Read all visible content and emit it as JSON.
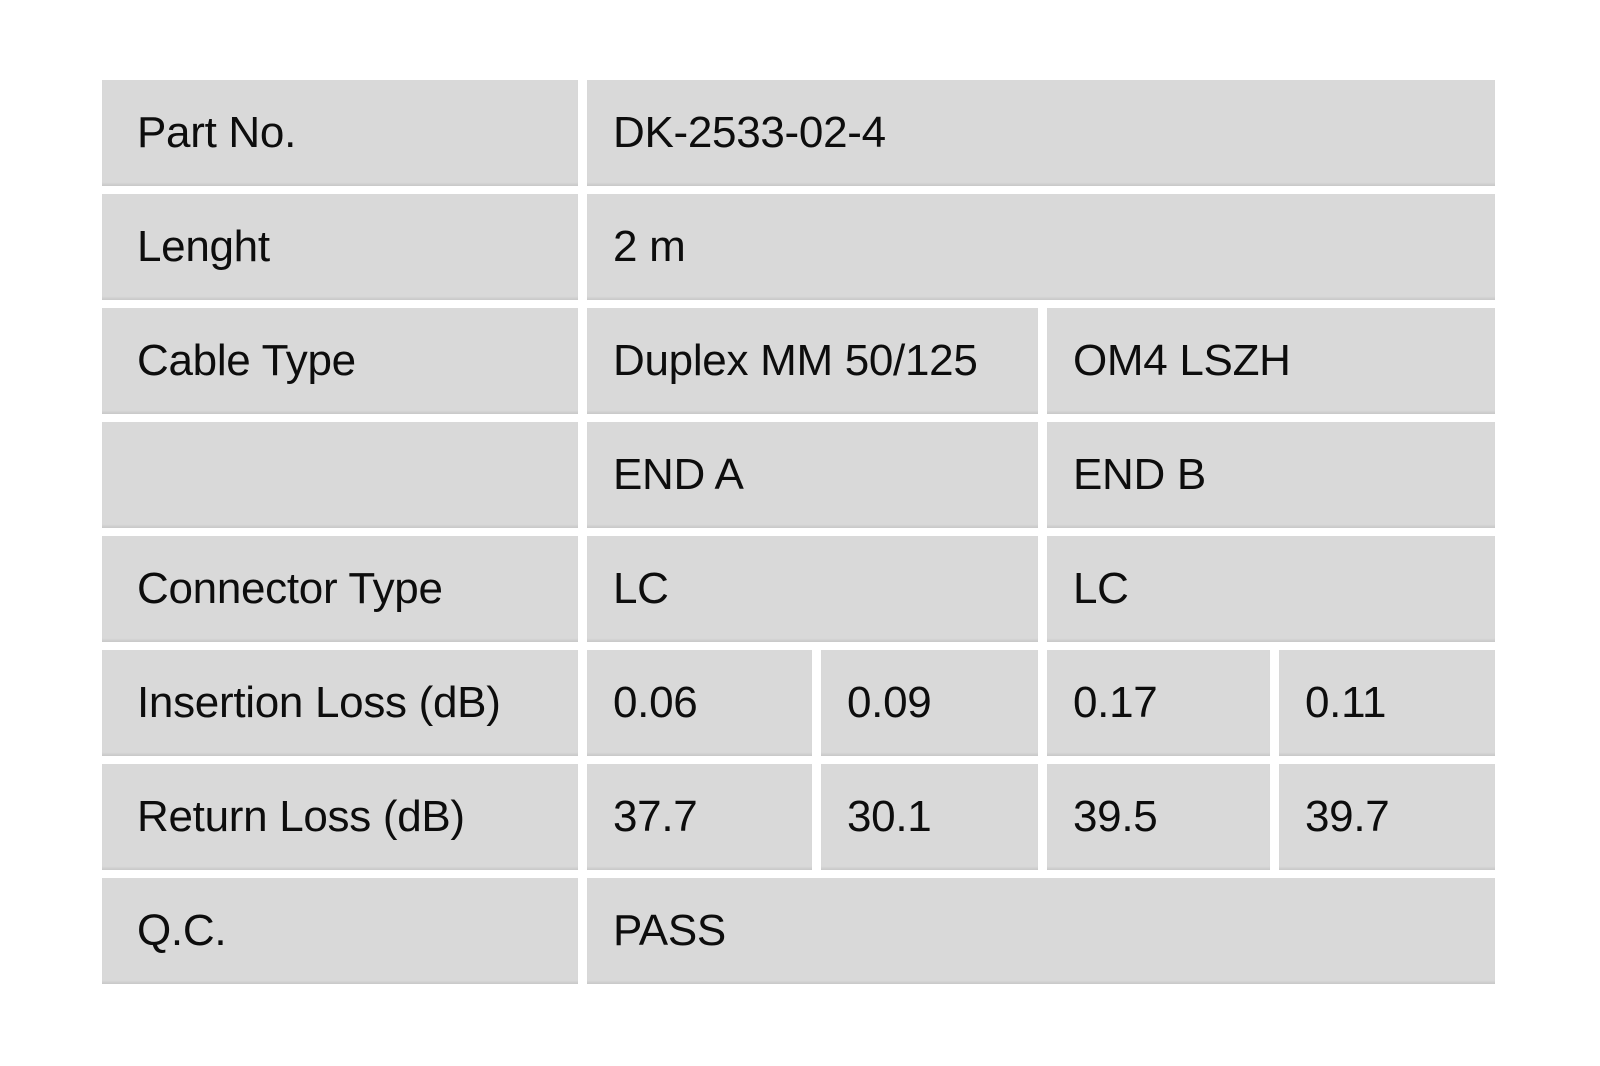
{
  "colors": {
    "page_bg": "#ffffff",
    "cell_bg": "#d9d9d9",
    "text_color": "#0d0d0d"
  },
  "table": {
    "rows": [
      {
        "label": "Part No.",
        "cells": [
          {
            "text": "DK-2533-02-4",
            "span": 4
          }
        ]
      },
      {
        "label": "Lenght",
        "cells": [
          {
            "text": "2 m",
            "span": 4
          }
        ]
      },
      {
        "label": "Cable Type",
        "cells": [
          {
            "text": "Duplex MM 50/125",
            "span": 2
          },
          {
            "text": "OM4 LSZH",
            "span": 2
          }
        ]
      },
      {
        "label": "",
        "cells": [
          {
            "text": "END A",
            "span": 2
          },
          {
            "text": "END B",
            "span": 2
          }
        ]
      },
      {
        "label": "Connector Type",
        "cells": [
          {
            "text": "LC",
            "span": 2
          },
          {
            "text": "LC",
            "span": 2
          }
        ]
      },
      {
        "label": "Insertion Loss (dB)",
        "cells": [
          {
            "text": "0.06",
            "span": 1
          },
          {
            "text": "0.09",
            "span": 1
          },
          {
            "text": "0.17",
            "span": 1
          },
          {
            "text": "0.11",
            "span": 1
          }
        ]
      },
      {
        "label": "Return Loss (dB)",
        "cells": [
          {
            "text": "37.7",
            "span": 1
          },
          {
            "text": "30.1",
            "span": 1
          },
          {
            "text": "39.5",
            "span": 1
          },
          {
            "text": "39.7",
            "span": 1
          }
        ]
      },
      {
        "label": "Q.C.",
        "cells": [
          {
            "text": "PASS",
            "span": 4
          }
        ]
      }
    ]
  }
}
